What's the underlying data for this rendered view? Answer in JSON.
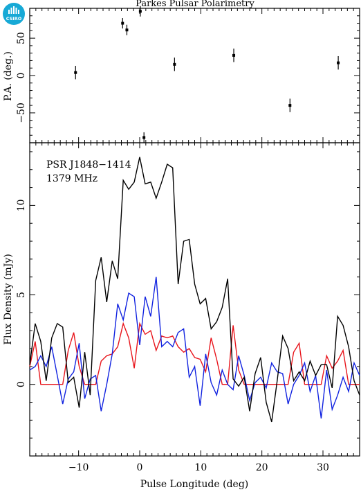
{
  "figure": {
    "title": "Parkes Pulsar Polarimetry",
    "logo_text": "CSIRO",
    "annotation_lines": [
      "PSR J1848−1414",
      "1379 MHz"
    ]
  },
  "chart_data": [
    {
      "type": "scatter",
      "panel": "position-angle",
      "xlabel": "",
      "ylabel": "P.A. (deg.)",
      "xlim": [
        -18,
        36
      ],
      "ylim": [
        -90,
        90
      ],
      "xticks": [
        -10,
        0,
        10,
        20,
        30
      ],
      "yticks": [
        -50,
        0,
        50
      ],
      "ytick_labels": [
        "−50",
        "0",
        "50"
      ],
      "points": [
        {
          "x": -10.5,
          "y": 4,
          "err": 9
        },
        {
          "x": -2.8,
          "y": 70,
          "err": 7
        },
        {
          "x": -2.1,
          "y": 61,
          "err": 7
        },
        {
          "x": 0.1,
          "y": 86,
          "err": 7
        },
        {
          "x": 0.7,
          "y": -83,
          "err": 7
        },
        {
          "x": 5.7,
          "y": 15,
          "err": 9
        },
        {
          "x": 15.4,
          "y": 27,
          "err": 9
        },
        {
          "x": 24.6,
          "y": -40,
          "err": 9
        },
        {
          "x": 32.5,
          "y": 17,
          "err": 9
        }
      ]
    },
    {
      "type": "line",
      "panel": "flux-profile",
      "xlabel": "Pulse Longitude (deg)",
      "ylabel": "Flux Density (mJy)",
      "xlim": [
        -18,
        36
      ],
      "ylim": [
        -4,
        13.5
      ],
      "xticks": [
        -10,
        0,
        10,
        20,
        30
      ],
      "xtick_labels": [
        "−10",
        "0",
        "10",
        "20",
        "30"
      ],
      "yticks": [
        0,
        5,
        10
      ],
      "colors": {
        "total": "#000000",
        "linear": "#e8141b",
        "circular": "#1022e0"
      },
      "x": [
        -18.0,
        -17.1,
        -16.2,
        -15.3,
        -14.4,
        -13.5,
        -12.6,
        -11.7,
        -10.8,
        -9.9,
        -9.0,
        -8.1,
        -7.2,
        -6.3,
        -5.4,
        -4.5,
        -3.6,
        -2.7,
        -1.8,
        -0.9,
        0.0,
        0.9,
        1.8,
        2.7,
        3.6,
        4.5,
        5.4,
        6.3,
        7.2,
        8.1,
        9.0,
        9.9,
        10.8,
        11.7,
        12.6,
        13.5,
        14.4,
        15.3,
        16.2,
        17.1,
        18.0,
        18.9,
        19.8,
        20.7,
        21.6,
        22.5,
        23.4,
        24.3,
        25.2,
        26.1,
        27.0,
        27.9,
        28.8,
        29.7,
        30.6,
        31.5,
        32.4,
        33.3,
        34.2,
        35.1,
        36.0
      ],
      "series": [
        {
          "role": "total",
          "values": [
            1.1,
            3.4,
            2.4,
            0.2,
            2.6,
            3.4,
            3.2,
            0.1,
            0.4,
            -1.3,
            1.8,
            -0.6,
            5.8,
            7.1,
            4.6,
            6.9,
            5.9,
            11.4,
            10.9,
            11.3,
            12.7,
            11.2,
            11.3,
            10.4,
            11.3,
            12.3,
            12.1,
            5.6,
            8.0,
            8.1,
            5.6,
            4.5,
            4.8,
            3.1,
            3.5,
            4.3,
            5.9,
            0.3,
            -0.1,
            0.4,
            -1.5,
            0.6,
            1.5,
            -1.0,
            -2.1,
            0.2,
            2.7,
            2.0,
            0.2,
            0.7,
            0.2,
            1.3,
            0.5,
            1.1,
            1.1,
            -0.2,
            3.8,
            3.3,
            2.1,
            0.2,
            -0.6
          ]
        },
        {
          "role": "linear",
          "values": [
            1.0,
            2.4,
            0.0,
            0.0,
            0.0,
            0.0,
            0.0,
            1.9,
            2.9,
            1.0,
            0.0,
            0.0,
            0.0,
            1.3,
            1.6,
            1.7,
            2.1,
            3.4,
            2.6,
            0.9,
            3.4,
            2.8,
            3.0,
            1.9,
            2.7,
            2.6,
            2.7,
            2.1,
            1.8,
            2.0,
            1.5,
            1.4,
            0.7,
            2.6,
            1.4,
            0.0,
            0.0,
            3.3,
            0.8,
            0.0,
            0.0,
            0.0,
            0.0,
            0.0,
            0.0,
            0.0,
            0.0,
            0.0,
            1.8,
            2.3,
            0.0,
            0.0,
            0.0,
            0.0,
            1.6,
            0.9,
            1.3,
            1.9,
            0.0,
            0.0,
            0.0
          ]
        },
        {
          "role": "circular",
          "values": [
            0.8,
            1.0,
            1.6,
            1.0,
            2.1,
            0.5,
            -1.1,
            0.3,
            0.7,
            2.3,
            -0.8,
            0.3,
            0.5,
            -1.5,
            0.0,
            1.7,
            4.5,
            3.6,
            5.1,
            4.9,
            2.2,
            4.9,
            3.8,
            6.0,
            2.1,
            2.4,
            2.1,
            2.9,
            3.1,
            0.4,
            1.0,
            -1.2,
            1.7,
            0.1,
            -0.6,
            0.8,
            0.0,
            -0.3,
            1.6,
            0.5,
            -0.9,
            0.1,
            0.4,
            -0.2,
            1.2,
            0.7,
            0.6,
            -1.1,
            0.0,
            0.5,
            1.2,
            -0.4,
            0.5,
            -1.9,
            0.8,
            -1.4,
            -0.6,
            0.4,
            -0.4,
            1.2,
            0.5
          ]
        }
      ]
    }
  ]
}
